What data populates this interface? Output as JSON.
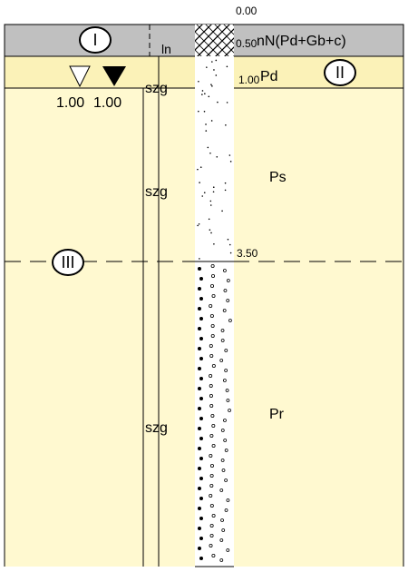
{
  "depth_labels": [
    "0.00",
    "0.50",
    "1.00",
    "3.50"
  ],
  "layers": [
    {
      "name": "nN(Pd+Gb+c)",
      "code": "ln"
    },
    {
      "name": "Pd",
      "code": "szg"
    },
    {
      "name": "Ps",
      "code": "szg"
    },
    {
      "name": "Pr",
      "code": "szg"
    }
  ],
  "zones": [
    "I",
    "II",
    "III"
  ],
  "water_levels": [
    "1.00",
    "1.00"
  ]
}
